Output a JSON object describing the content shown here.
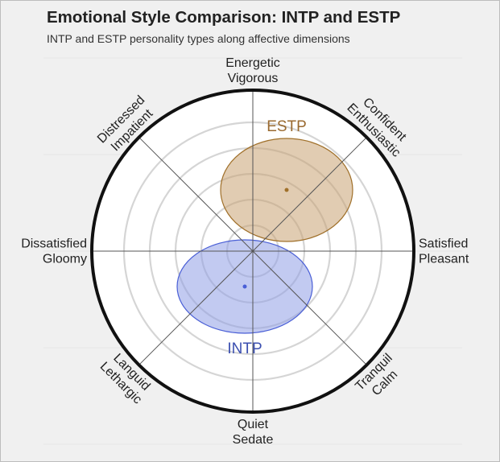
{
  "title": "Emotional Style Comparison: INTP and ESTP",
  "subtitle": "INTP and ESTP personality types along affective dimensions",
  "chart_data": {
    "type": "scatter",
    "title": "Emotional Style Comparison: INTP and ESTP",
    "subtitle": "INTP and ESTP personality types along affective dimensions",
    "grid": true,
    "range": [
      -1,
      1
    ],
    "axes": [
      {
        "angle": 90,
        "lines": [
          "Energetic",
          "Vigorous"
        ]
      },
      {
        "angle": 45,
        "lines": [
          "Confident",
          "Enthusiastic"
        ]
      },
      {
        "angle": 0,
        "lines": [
          "Satisfied",
          "Pleasant"
        ]
      },
      {
        "angle": -45,
        "lines": [
          "Tranquil",
          "Calm"
        ]
      },
      {
        "angle": -90,
        "lines": [
          "Quiet",
          "Sedate"
        ]
      },
      {
        "angle": -135,
        "lines": [
          "Languid",
          "Lethargic"
        ]
      },
      {
        "angle": 180,
        "lines": [
          "Dissatisfied",
          "Gloomy"
        ]
      },
      {
        "angle": 135,
        "lines": [
          "Distressed",
          "Impatient"
        ]
      }
    ],
    "series": [
      {
        "name": "ESTP",
        "x": 0.21,
        "y": 0.38,
        "spread_x": 0.41,
        "spread_y": 0.32,
        "fill": "#c9a273",
        "stroke": "#a0702a",
        "label_color": "#9a6a30",
        "label_position": "above"
      },
      {
        "name": "INTP",
        "x": -0.05,
        "y": -0.22,
        "spread_x": 0.42,
        "spread_y": 0.29,
        "fill": "#8f9ee6",
        "stroke": "#4a5fd6",
        "label_color": "#3b4fb0",
        "label_position": "below"
      }
    ]
  }
}
